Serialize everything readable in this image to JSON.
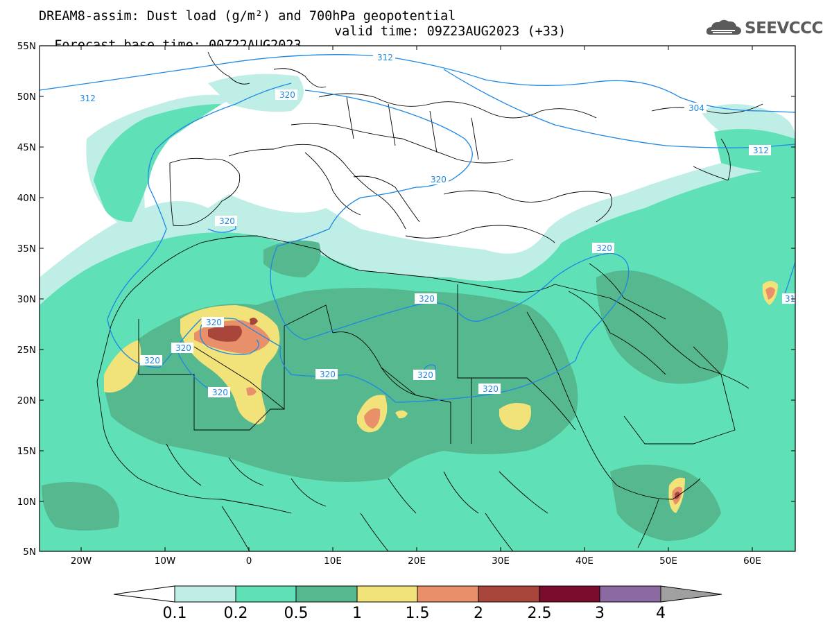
{
  "header": {
    "title_line1": "DREAM8-assim: Dust load (g/m²) and 700hPa geopotential",
    "title_line2_left": "Forecast base time: 00Z22AUG2023",
    "title_line2_right": "valid time: 09Z23AUG2023 (+33)"
  },
  "logo": {
    "text": "SEEVCCC",
    "icon": "cloud-logo-icon"
  },
  "map": {
    "projection": "lat-lon",
    "lon_range": [
      -25,
      65
    ],
    "lat_range": [
      5,
      55
    ],
    "lat_ticks": [
      "55N",
      "50N",
      "45N",
      "40N",
      "35N",
      "30N",
      "25N",
      "20N",
      "15N",
      "10N",
      "5N"
    ],
    "lon_ticks": [
      "20W",
      "10W",
      "0",
      "10E",
      "20E",
      "30E",
      "40E",
      "50E",
      "60E"
    ],
    "contour_color": "#1e88e5",
    "contour_labels": [
      "312",
      "320",
      "304",
      "312",
      "320",
      "320",
      "320",
      "320",
      "320",
      "320",
      "320",
      "320",
      "320",
      "31"
    ]
  },
  "colorbar": {
    "levels": [
      "0.1",
      "0.2",
      "0.5",
      "1",
      "1.5",
      "2",
      "2.5",
      "3",
      "4"
    ],
    "colors": [
      "#ffffff",
      "#bfeee6",
      "#5fe0b6",
      "#55b88e",
      "#f2e27a",
      "#e8906a",
      "#a8463c",
      "#7a0c2c",
      "#8a6aa0",
      "#a0a0a0"
    ]
  }
}
